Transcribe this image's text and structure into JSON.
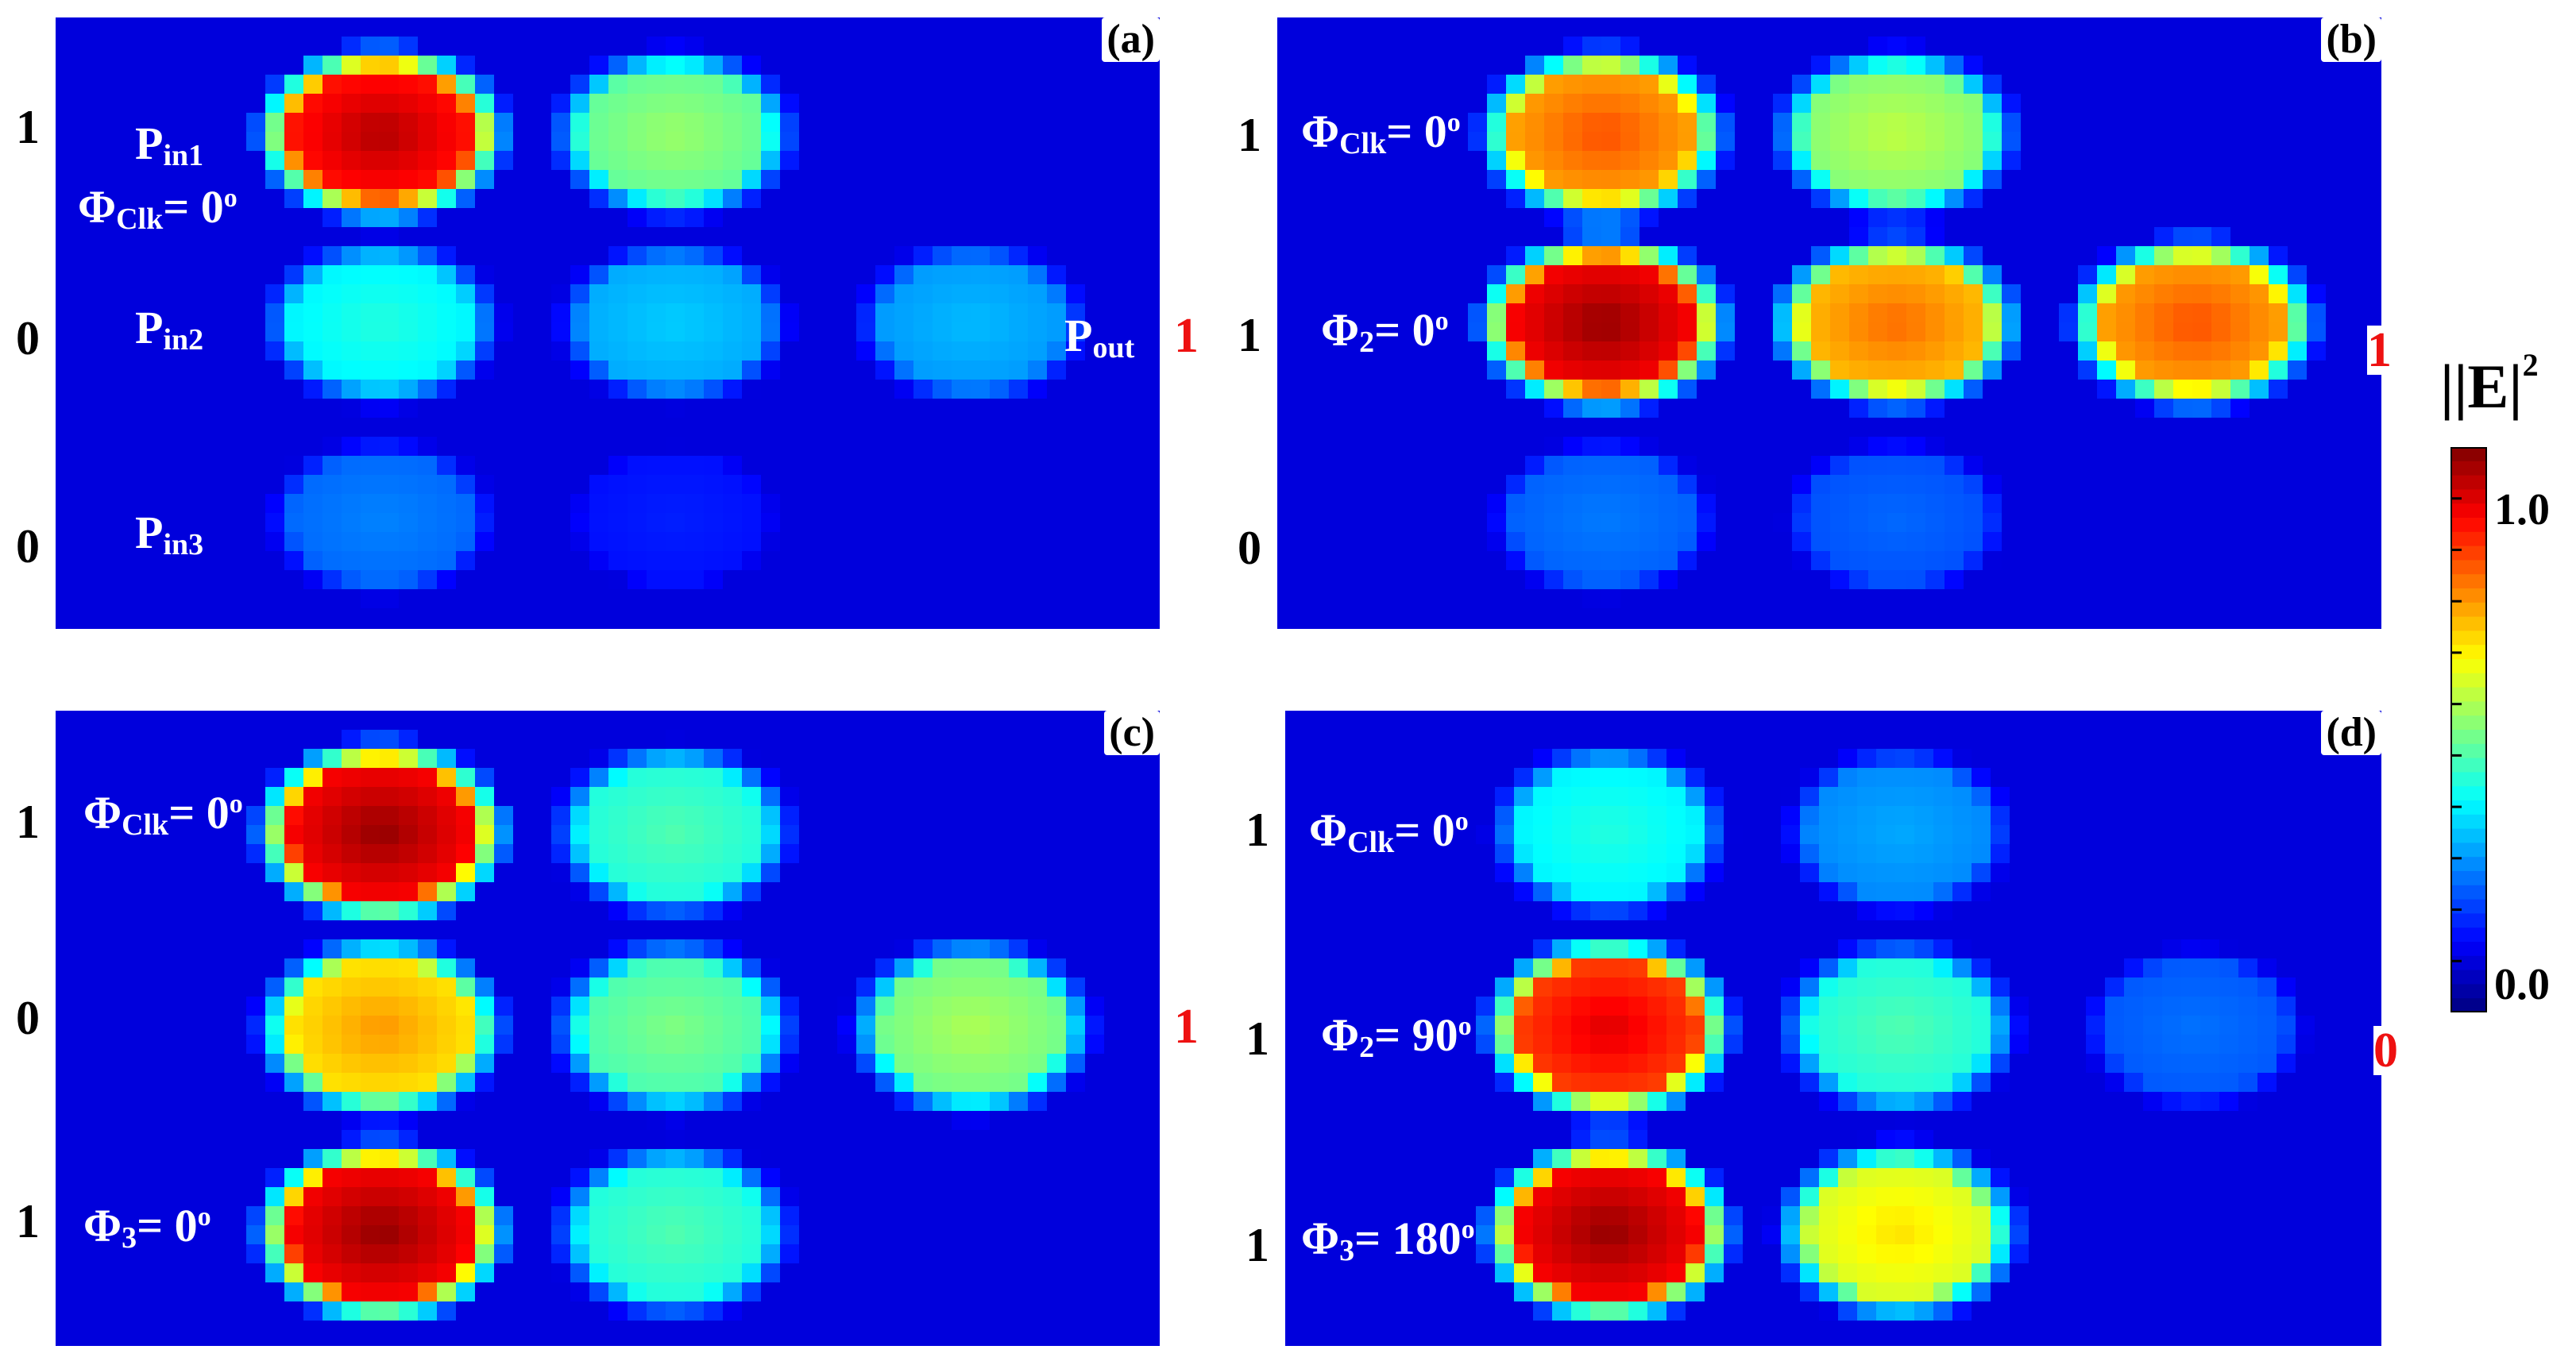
{
  "chart_data": {
    "type": "heatmap",
    "colorbar": {
      "label": "|E|",
      "label_superscript": "2",
      "range": [
        0.0,
        1.1
      ],
      "ticks": [
        {
          "value": 1.0,
          "label": "1.0"
        },
        {
          "value": 0.0,
          "label": "0.0"
        }
      ],
      "colormap": "jet"
    },
    "panels": [
      {
        "label": "(a)",
        "spots": [
          {
            "row": 1,
            "col": 1,
            "intensity": 1.05
          },
          {
            "row": 1,
            "col": 2,
            "intensity": 0.58
          },
          {
            "row": 2,
            "col": 1,
            "intensity": 0.45
          },
          {
            "row": 2,
            "col": 2,
            "intensity": 0.36
          },
          {
            "row": 2,
            "col": 3,
            "intensity": 0.34
          },
          {
            "row": 3,
            "col": 1,
            "intensity": 0.28
          },
          {
            "row": 3,
            "col": 2,
            "intensity": 0.17
          }
        ],
        "row_levels": [
          "1",
          "0",
          "0"
        ],
        "annotations": [
          {
            "text": "P",
            "sub": "in1"
          },
          {
            "text": "Φ",
            "sub": "Clk",
            "after": "= 0",
            "sup": "o"
          },
          {
            "text": "P",
            "sub": "in2"
          },
          {
            "text": "P",
            "sub": "in3"
          },
          {
            "text": "P",
            "sub": "out"
          }
        ],
        "output": "1"
      },
      {
        "label": "(b)",
        "spots": [
          {
            "row": 1,
            "col": 1,
            "intensity": 0.88
          },
          {
            "row": 1,
            "col": 2,
            "intensity": 0.62
          },
          {
            "row": 2,
            "col": 1,
            "intensity": 1.08
          },
          {
            "row": 2,
            "col": 2,
            "intensity": 0.85
          },
          {
            "row": 2,
            "col": 3,
            "intensity": 0.88
          },
          {
            "row": 3,
            "col": 1,
            "intensity": 0.27
          },
          {
            "row": 3,
            "col": 2,
            "intensity": 0.25
          }
        ],
        "row_levels": [
          "1",
          "1",
          "0"
        ],
        "annotations": [
          {
            "text": "Φ",
            "sub": "Clk",
            "after": "= 0",
            "sup": "o"
          },
          {
            "text": "Φ",
            "sub": "2",
            "after": "= 0",
            "sup": "o"
          }
        ],
        "output": "1"
      },
      {
        "label": "(c)",
        "spots": [
          {
            "row": 1,
            "col": 1,
            "intensity": 1.08
          },
          {
            "row": 1,
            "col": 2,
            "intensity": 0.5
          },
          {
            "row": 2,
            "col": 1,
            "intensity": 0.8
          },
          {
            "row": 2,
            "col": 2,
            "intensity": 0.55
          },
          {
            "row": 2,
            "col": 3,
            "intensity": 0.6
          },
          {
            "row": 3,
            "col": 1,
            "intensity": 1.08
          },
          {
            "row": 3,
            "col": 2,
            "intensity": 0.5
          }
        ],
        "row_levels": [
          "1",
          "0",
          "1"
        ],
        "annotations": [
          {
            "text": "Φ",
            "sub": "Clk",
            "after": "= 0",
            "sup": "o"
          },
          {
            "text": "Φ",
            "sub": "3",
            "after": "= 0",
            "sup": "o"
          }
        ],
        "output": "1"
      },
      {
        "label": "(d)",
        "spots": [
          {
            "row": 1,
            "col": 1,
            "intensity": 0.45
          },
          {
            "row": 1,
            "col": 2,
            "intensity": 0.32
          },
          {
            "row": 2,
            "col": 1,
            "intensity": 1.0
          },
          {
            "row": 2,
            "col": 2,
            "intensity": 0.5
          },
          {
            "row": 2,
            "col": 3,
            "intensity": 0.26
          },
          {
            "row": 3,
            "col": 1,
            "intensity": 1.08
          },
          {
            "row": 3,
            "col": 2,
            "intensity": 0.72
          }
        ],
        "row_levels": [
          "1",
          "1",
          "1"
        ],
        "annotations": [
          {
            "text": "Φ",
            "sub": "Clk",
            "after": "= 0",
            "sup": "o"
          },
          {
            "text": "Φ",
            "sub": "2",
            "after": "= 90",
            "sup": "o"
          },
          {
            "text": "Φ",
            "sub": "3",
            "after": "= 180",
            "sup": "o"
          }
        ],
        "output": "0"
      }
    ]
  }
}
